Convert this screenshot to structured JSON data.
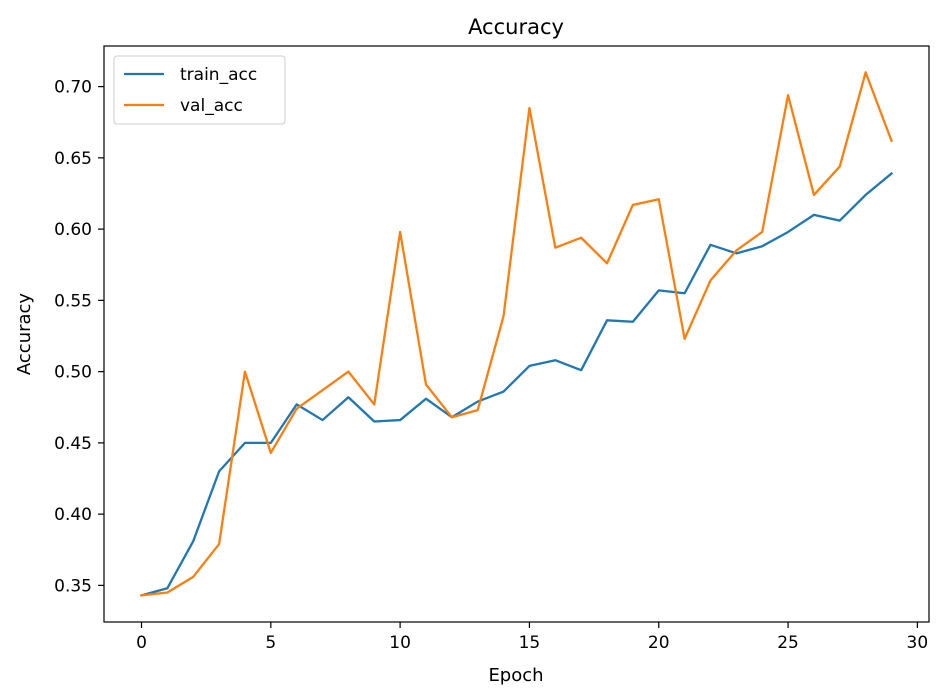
{
  "chart_data": {
    "type": "line",
    "title": "Accuracy",
    "xlabel": "Epoch",
    "ylabel": "Accuracy",
    "xlim": [
      -1.45,
      30.45
    ],
    "ylim": [
      0.3243,
      0.7285
    ],
    "xticks": [
      0,
      5,
      10,
      15,
      20,
      25,
      30
    ],
    "xtick_labels": [
      "0",
      "5",
      "10",
      "15",
      "20",
      "25",
      "30"
    ],
    "yticks": [
      0.35,
      0.4,
      0.45,
      0.5,
      0.55,
      0.6,
      0.65,
      0.7
    ],
    "ytick_labels": [
      "0.35",
      "0.40",
      "0.45",
      "0.50",
      "0.55",
      "0.60",
      "0.65",
      "0.70"
    ],
    "grid": false,
    "legend_position": "top-left",
    "x": [
      0,
      1,
      2,
      3,
      4,
      5,
      6,
      7,
      8,
      9,
      10,
      11,
      12,
      13,
      14,
      15,
      16,
      17,
      18,
      19,
      20,
      21,
      22,
      23,
      24,
      25,
      26,
      27,
      28,
      29
    ],
    "series": [
      {
        "name": "train_acc",
        "color": "#1f77b4",
        "values": [
          0.343,
          0.348,
          0.381,
          0.43,
          0.45,
          0.45,
          0.477,
          0.466,
          0.482,
          0.465,
          0.466,
          0.481,
          0.468,
          0.479,
          0.486,
          0.504,
          0.508,
          0.501,
          0.536,
          0.535,
          0.557,
          0.555,
          0.589,
          0.583,
          0.588,
          0.598,
          0.61,
          0.606,
          0.624,
          0.639
        ]
      },
      {
        "name": "val_acc",
        "color": "#ff7f0e",
        "values": [
          0.343,
          0.345,
          0.356,
          0.379,
          0.5,
          0.443,
          0.474,
          0.487,
          0.5,
          0.477,
          0.598,
          0.491,
          0.468,
          0.473,
          0.539,
          0.685,
          0.587,
          0.594,
          0.576,
          0.617,
          0.621,
          0.523,
          0.564,
          0.585,
          0.598,
          0.694,
          0.624,
          0.644,
          0.71,
          0.662
        ]
      }
    ]
  }
}
